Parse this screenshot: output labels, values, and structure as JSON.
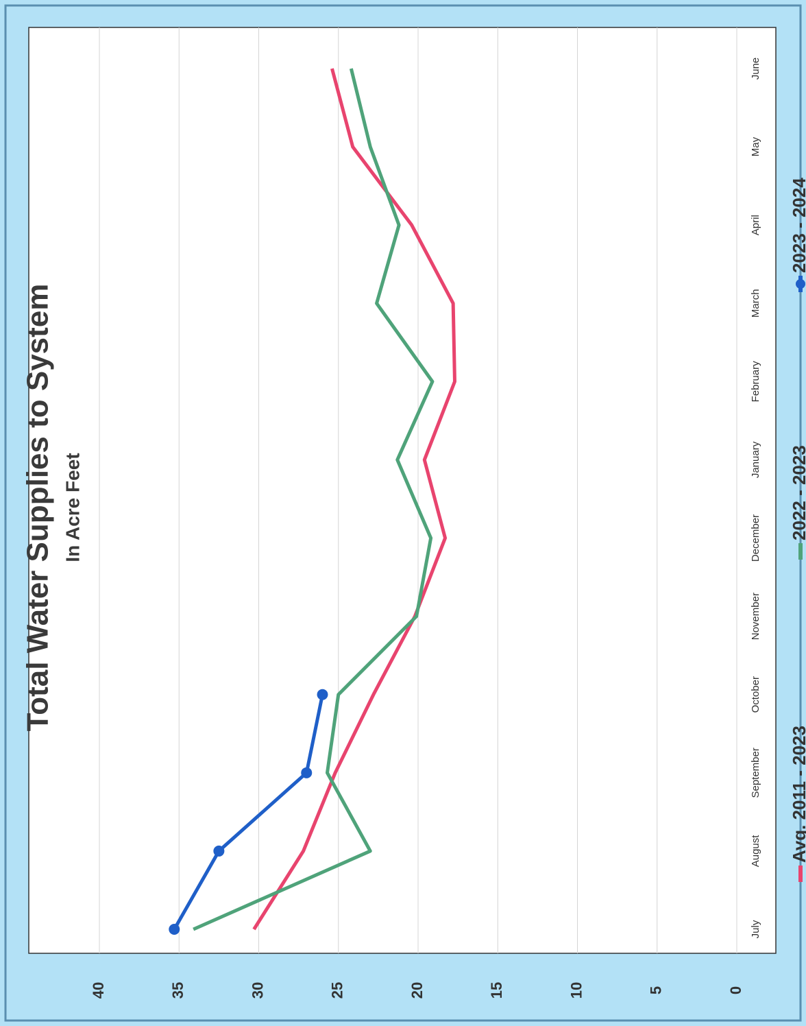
{
  "chart_data": {
    "type": "line",
    "title": "Total Water Supplies to System",
    "subtitle": "In Acre Feet",
    "categories": [
      "July",
      "August",
      "September",
      "October",
      "November",
      "December",
      "January",
      "February",
      "March",
      "April",
      "May",
      "June"
    ],
    "series": [
      {
        "name": "Avg. 2011 - 2023",
        "color": "#e8446e",
        "values": [
          30.3,
          27.2,
          25.2,
          22.8,
          20.2,
          18.3,
          19.6,
          17.7,
          17.8,
          20.4,
          24.1,
          25.4
        ]
      },
      {
        "name": "2022 - 2023",
        "color": "#4fa37a",
        "values": [
          34.1,
          23.0,
          25.7,
          25.0,
          20.1,
          19.2,
          21.3,
          19.1,
          22.6,
          21.2,
          23.0,
          24.2
        ]
      },
      {
        "name": "2023 - 2024",
        "color": "#1f5fc8",
        "markers": true,
        "values": [
          35.3,
          32.5,
          27.0,
          26.0,
          null,
          null,
          null,
          null,
          null,
          null,
          null,
          null
        ]
      }
    ],
    "ylim": [
      0,
      40
    ],
    "yticks": [
      0,
      5,
      10,
      15,
      20,
      25,
      30,
      35,
      40
    ],
    "grid": true,
    "legend": "bottom"
  }
}
